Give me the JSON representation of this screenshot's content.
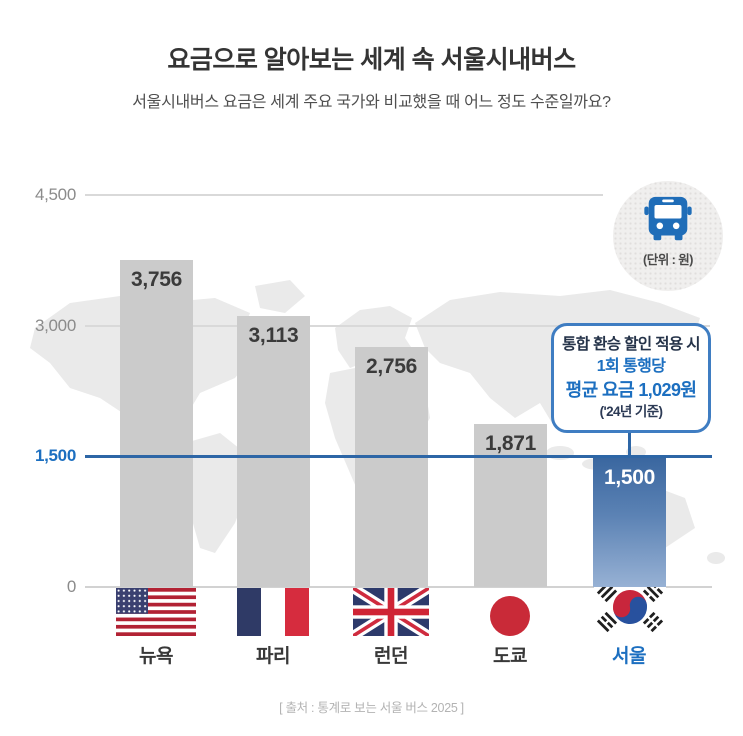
{
  "header": {
    "title": "요금으로 알아보는 세계 속 서울시내버스",
    "subtitle": "서울시내버스 요금은 세계 주요 국가와 비교했을 때 어느 정도 수준일까요?"
  },
  "unit_badge": {
    "icon": "bus-icon",
    "label": "(단위 : 원)"
  },
  "callout": {
    "line1": "통합 환승 할인 적용 시",
    "line2": "1회 통행당",
    "line3": "평균 요금 1,029원",
    "line4": "('24년 기준)"
  },
  "chart_data": {
    "type": "bar",
    "title": "요금으로 알아보는 세계 속 서울시내버스",
    "categories": [
      "뉴욕",
      "파리",
      "런던",
      "도쿄",
      "서울"
    ],
    "values": [
      3756,
      3113,
      2756,
      1871,
      1500
    ],
    "value_labels": [
      "3,756",
      "3,113",
      "2,756",
      "1,871",
      "1,500"
    ],
    "flags": [
      "us-flag",
      "france-flag",
      "uk-flag",
      "japan-flag",
      "korea-flag"
    ],
    "highlight_index": 4,
    "unit": "원",
    "ylim": [
      0,
      4500
    ],
    "yticks": [
      0,
      1500,
      3000,
      4500
    ],
    "ytick_labels": [
      "0",
      "1,500",
      "3,000",
      "4,500"
    ],
    "highlight_line_value": 1500,
    "grid": true,
    "annotation": "통합 환승 할인 적용 시 1회 통행당 평균 요금 1,029원 ('24년 기준)",
    "colors": {
      "bar_gray": "#cbcbcb",
      "highlight_bar_top": "#39669f",
      "highlight_bar_bottom": "#97b1d4",
      "accent_blue": "#1c6fc0",
      "line_blue": "#2d66a6",
      "gridline_gray": "#d9d9d9"
    }
  },
  "footer": {
    "source": "[ 출처 : 통계로 보는 서울 버스 2025 ]"
  }
}
